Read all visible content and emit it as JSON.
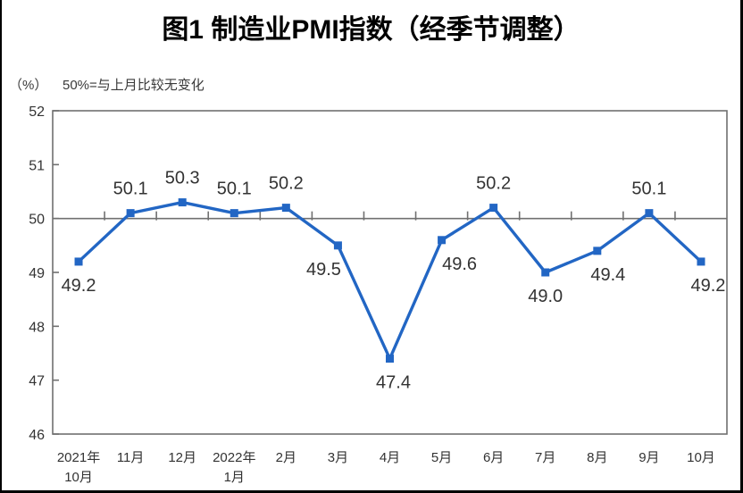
{
  "page": {
    "title": "图1 制造业PMI指数（经季节调整）",
    "unit_label": "（%）",
    "reference_note": "50%=与上月比较无变化"
  },
  "chart_data": {
    "type": "line",
    "title": "图1 制造业PMI指数（经季节调整）",
    "note": "50%=与上月比较无变化",
    "unit": "%",
    "categories": [
      "2021年10月",
      "11月",
      "12月",
      "2022年1月",
      "2月",
      "3月",
      "4月",
      "5月",
      "6月",
      "7月",
      "8月",
      "9月",
      "10月"
    ],
    "category_lines": [
      [
        "2021年",
        "10月"
      ],
      [
        "11月"
      ],
      [
        "12月"
      ],
      [
        "2022年",
        "1月"
      ],
      [
        "2月"
      ],
      [
        "3月"
      ],
      [
        "4月"
      ],
      [
        "5月"
      ],
      [
        "6月"
      ],
      [
        "7月"
      ],
      [
        "8月"
      ],
      [
        "9月"
      ],
      [
        "10月"
      ]
    ],
    "series": [
      {
        "name": "制造业PMI",
        "values": [
          49.2,
          50.1,
          50.3,
          50.1,
          50.2,
          49.5,
          47.4,
          49.6,
          50.2,
          49.0,
          49.4,
          50.1,
          49.2
        ]
      }
    ],
    "data_labels": [
      "49.2",
      "50.1",
      "50.3",
      "50.1",
      "50.2",
      "49.5",
      "47.4",
      "49.6",
      "50.2",
      "49.0",
      "49.4",
      "50.1",
      "49.2"
    ],
    "ylim": [
      46,
      52
    ],
    "ytick_step": 1,
    "yticks": [
      46,
      47,
      48,
      49,
      50,
      51,
      52
    ],
    "reference_line": 50,
    "grid": false,
    "legend_position": "none",
    "marker": "square",
    "colors": {
      "line": "#2266C4",
      "marker": "#2266C4",
      "label": "#333333",
      "axis": "#707070",
      "tick_text": "#333333",
      "title": "#000000"
    }
  }
}
